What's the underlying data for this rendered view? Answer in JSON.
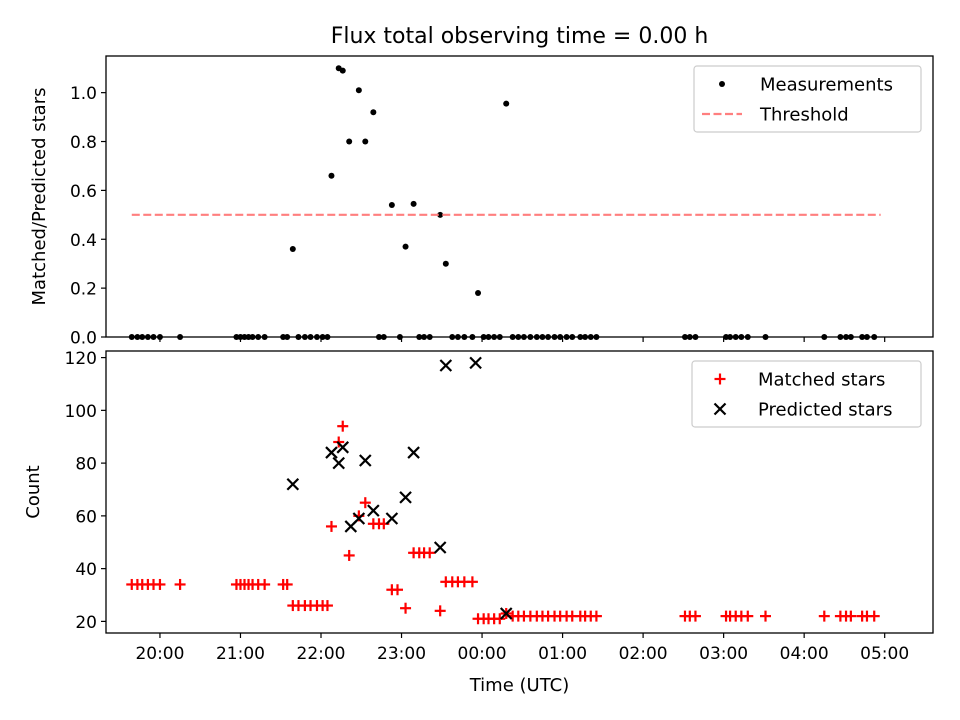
{
  "title": "Flux total observing time = 0.00 h",
  "chart_data": [
    {
      "type": "scatter",
      "ylabel": "Matched/Predicted stars",
      "xlabel": "",
      "xlim": [
        19.33,
        29.6
      ],
      "ylim": [
        0,
        1.15
      ],
      "yticks": [
        0.0,
        0.2,
        0.4,
        0.6,
        0.8,
        1.0
      ],
      "ytick_labels": [
        "0.0",
        "0.2",
        "0.4",
        "0.6",
        "0.8",
        "1.0"
      ],
      "xticks": [
        20,
        21,
        22,
        23,
        24,
        25,
        26,
        27,
        28,
        29
      ],
      "legend": {
        "position": "upper right",
        "entries": [
          "Measurements",
          "Threshold"
        ]
      },
      "series": [
        {
          "name": "Measurements",
          "marker": "dot",
          "color": "#000000",
          "x": [
            19.65,
            19.72,
            19.78,
            19.85,
            19.92,
            20.0,
            20.25,
            20.95,
            21.0,
            21.05,
            21.1,
            21.15,
            21.22,
            21.3,
            21.53,
            21.58,
            21.65,
            21.72,
            21.8,
            21.87,
            21.95,
            22.02,
            22.08,
            22.13,
            22.22,
            22.27,
            22.35,
            22.47,
            22.55,
            22.65,
            22.72,
            22.78,
            22.88,
            22.98,
            23.05,
            23.15,
            23.22,
            23.28,
            23.35,
            23.48,
            23.55,
            23.63,
            23.7,
            23.78,
            23.88,
            23.95,
            24.02,
            24.08,
            24.15,
            24.22,
            24.3,
            24.38,
            24.45,
            24.52,
            24.6,
            24.68,
            24.75,
            24.82,
            24.9,
            24.97,
            25.05,
            25.12,
            25.22,
            25.28,
            25.35,
            25.42,
            26.52,
            26.58,
            26.65,
            27.03,
            27.08,
            27.15,
            27.22,
            27.3,
            27.52,
            28.25,
            28.45,
            28.52,
            28.58,
            28.72,
            28.78,
            28.87
          ],
          "y": [
            0.0,
            0.0,
            0.0,
            0.0,
            0.0,
            0.0,
            0.0,
            0.0,
            0.0,
            0.0,
            0.0,
            0.0,
            0.0,
            0.0,
            0.0,
            0.0,
            0.36,
            0.0,
            0.0,
            0.0,
            0.0,
            0.0,
            0.0,
            0.66,
            1.1,
            1.09,
            0.8,
            1.01,
            0.8,
            0.92,
            0.0,
            0.0,
            0.54,
            0.0,
            0.37,
            0.545,
            0.0,
            0.0,
            0.0,
            0.5,
            0.3,
            0.0,
            0.0,
            0.0,
            0.0,
            0.18,
            0.0,
            0.0,
            0.0,
            0.0,
            0.955,
            0.0,
            0.0,
            0.0,
            0.0,
            0.0,
            0.0,
            0.0,
            0.0,
            0.0,
            0.0,
            0.0,
            0.0,
            0.0,
            0.0,
            0.0,
            0.0,
            0.0,
            0.0,
            0.0,
            0.0,
            0.0,
            0.0,
            0.0,
            0.0,
            0.0,
            0.0,
            0.0,
            0.0,
            0.0,
            0.0,
            0.0
          ]
        },
        {
          "name": "Threshold",
          "marker": "dashed-line",
          "color": "#ff7f7f",
          "x": [
            19.65,
            28.95
          ],
          "y": [
            0.5,
            0.5
          ]
        }
      ]
    },
    {
      "type": "scatter",
      "ylabel": "Count",
      "xlabel": "Time (UTC)",
      "xlim": [
        19.33,
        29.6
      ],
      "ylim": [
        15.6,
        122.5
      ],
      "yticks": [
        20,
        40,
        60,
        80,
        100,
        120
      ],
      "ytick_labels": [
        "20",
        "40",
        "60",
        "80",
        "100",
        "120"
      ],
      "xticks": [
        20,
        21,
        22,
        23,
        24,
        25,
        26,
        27,
        28,
        29
      ],
      "xtick_labels": [
        "20:00",
        "21:00",
        "22:00",
        "23:00",
        "00:00",
        "01:00",
        "02:00",
        "03:00",
        "04:00",
        "05:00"
      ],
      "legend": {
        "position": "upper right",
        "entries": [
          "Matched stars",
          "Predicted stars"
        ]
      },
      "series": [
        {
          "name": "Matched stars",
          "marker": "plus",
          "color": "#ff0000",
          "x": [
            19.65,
            19.72,
            19.78,
            19.85,
            19.92,
            20.0,
            20.25,
            20.95,
            21.0,
            21.05,
            21.1,
            21.15,
            21.22,
            21.3,
            21.53,
            21.58,
            21.65,
            21.72,
            21.8,
            21.87,
            21.95,
            22.02,
            22.08,
            22.13,
            22.22,
            22.27,
            22.35,
            22.47,
            22.55,
            22.65,
            22.72,
            22.78,
            22.88,
            22.95,
            23.05,
            23.15,
            23.22,
            23.28,
            23.35,
            23.48,
            23.55,
            23.63,
            23.7,
            23.78,
            23.88,
            23.95,
            24.02,
            24.08,
            24.15,
            24.22,
            24.3,
            24.38,
            24.45,
            24.52,
            24.6,
            24.68,
            24.75,
            24.82,
            24.9,
            24.97,
            25.05,
            25.12,
            25.22,
            25.28,
            25.35,
            25.42,
            26.52,
            26.58,
            26.65,
            27.03,
            27.08,
            27.15,
            27.22,
            27.3,
            27.52,
            28.25,
            28.45,
            28.52,
            28.58,
            28.72,
            28.78,
            28.87
          ],
          "y": [
            34,
            34,
            34,
            34,
            34,
            34,
            34,
            34,
            34,
            34,
            34,
            34,
            34,
            34,
            34,
            34,
            26,
            26,
            26,
            26,
            26,
            26,
            26,
            56,
            88,
            94,
            45,
            60,
            65,
            57,
            57,
            57,
            32,
            32,
            25,
            46,
            46,
            46,
            46,
            24,
            35,
            35,
            35,
            35,
            35,
            21,
            21,
            21,
            21,
            21,
            23,
            22,
            22,
            22,
            22,
            22,
            22,
            22,
            22,
            22,
            22,
            22,
            22,
            22,
            22,
            22,
            22,
            22,
            22,
            22,
            22,
            22,
            22,
            22,
            22,
            22,
            22,
            22,
            22,
            22,
            22,
            22
          ]
        },
        {
          "name": "Predicted stars",
          "marker": "x",
          "color": "#000000",
          "x": [
            21.65,
            22.13,
            22.22,
            22.27,
            22.37,
            22.47,
            22.55,
            22.65,
            22.88,
            23.05,
            23.15,
            23.48,
            23.55,
            23.92,
            24.3
          ],
          "y": [
            72,
            84,
            80,
            86,
            56,
            59,
            81,
            62,
            59,
            67,
            84,
            48,
            117,
            118,
            23
          ]
        }
      ]
    }
  ]
}
